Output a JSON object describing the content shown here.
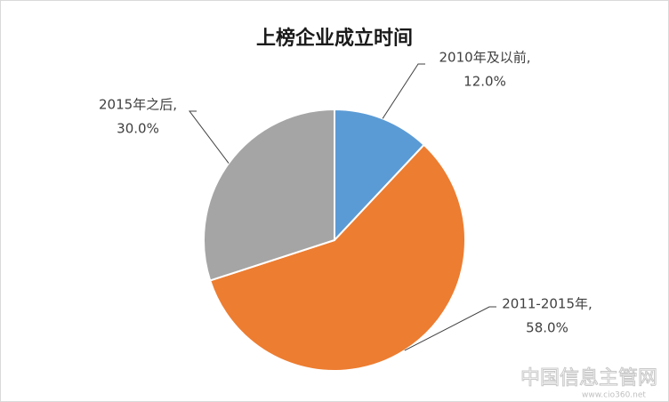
{
  "chart_data": {
    "type": "pie",
    "title": "上榜企业成立时间",
    "categories": [
      "2010年及以前,",
      "2011-2015年,",
      "2015年之后,"
    ],
    "values": [
      12.0,
      58.0,
      30.0
    ],
    "value_labels": [
      "12.0%",
      "58.0%",
      "30.0%"
    ],
    "colors": [
      "#5b9bd5",
      "#ed7d31",
      "#a5a5a5"
    ],
    "annotations": [
      "中国信息主管网",
      "www.cio360.net"
    ]
  }
}
